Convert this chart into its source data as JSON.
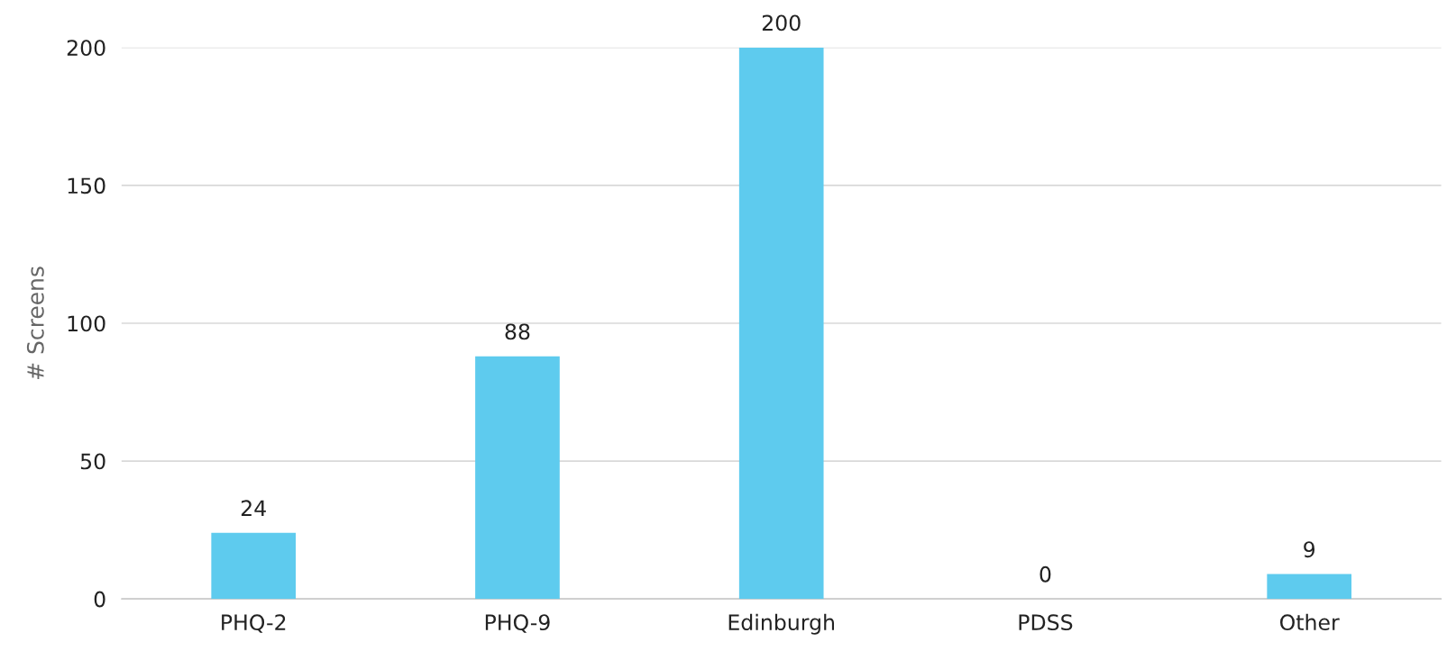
{
  "chart_data": {
    "type": "bar",
    "ylabel": "# Screens",
    "categories": [
      "PHQ-2",
      "PHQ-9",
      "Edinburgh",
      "PDSS",
      "Other"
    ],
    "values": [
      24,
      88,
      200,
      0,
      9
    ],
    "color": "#5ecbee",
    "ylim": [
      0,
      200
    ],
    "yticks": [
      0,
      50,
      100,
      150,
      200
    ],
    "grid": "y",
    "data_labels": true
  }
}
